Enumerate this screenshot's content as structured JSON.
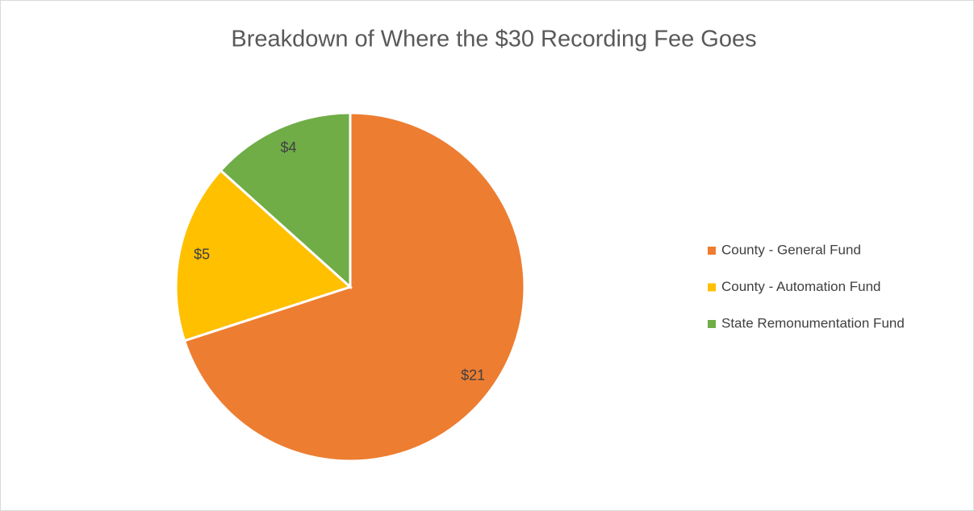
{
  "chart_data": {
    "type": "pie",
    "title": "Breakdown of Where the $30 Recording Fee Goes",
    "categories": [
      "County - General Fund",
      "County - Automation Fund",
      "State Remonumentation Fund"
    ],
    "values": [
      21,
      5,
      4
    ],
    "value_labels": [
      "$21",
      "$5",
      "$4"
    ],
    "colors": [
      "#ed7d31",
      "#ffc000",
      "#70ad47"
    ],
    "legend": "right"
  }
}
